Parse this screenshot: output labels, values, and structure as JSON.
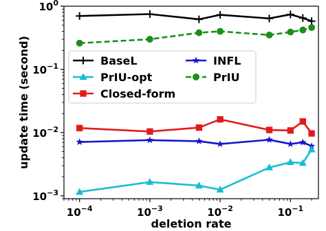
{
  "chart_data": {
    "type": "line",
    "title": "",
    "xlabel": "deletion rate",
    "ylabel": "update time (second)",
    "xscale": "log",
    "yscale": "log",
    "xlim": [
      6e-05,
      0.25
    ],
    "ylim": [
      0.0009,
      1.0
    ],
    "xticks": [
      {
        "value": 0.0001,
        "base": "10",
        "exp": "−4"
      },
      {
        "value": 0.001,
        "base": "10",
        "exp": "−3"
      },
      {
        "value": 0.01,
        "base": "10",
        "exp": "−2"
      },
      {
        "value": 0.1,
        "base": "10",
        "exp": "−1"
      }
    ],
    "yticks": [
      {
        "value": 0.001,
        "base": "10",
        "exp": "−3"
      },
      {
        "value": 0.01,
        "base": "10",
        "exp": "−2"
      },
      {
        "value": 0.1,
        "base": "10",
        "exp": "−1"
      },
      {
        "value": 1,
        "base": "10",
        "exp": "0"
      }
    ],
    "grid": false,
    "legend_position": "middle",
    "x": [
      0.0001,
      0.001,
      0.005,
      0.01,
      0.05,
      0.1,
      0.15,
      0.2
    ],
    "series": [
      {
        "name": "BaseL",
        "color": "#000000",
        "marker": "plus",
        "dash": "solid",
        "values": [
          0.7,
          0.75,
          0.62,
          0.73,
          0.64,
          0.74,
          0.65,
          0.58
        ]
      },
      {
        "name": "PrIU-opt",
        "color": "#17becf",
        "marker": "triangle",
        "dash": "solid",
        "values": [
          0.00115,
          0.00165,
          0.00145,
          0.00125,
          0.0028,
          0.0034,
          0.0033,
          0.0054
        ]
      },
      {
        "name": "Closed-form",
        "color": "#e31a1c",
        "marker": "square",
        "dash": "solid",
        "values": [
          0.0118,
          0.0104,
          0.012,
          0.0162,
          0.011,
          0.0108,
          0.015,
          0.0097
        ]
      },
      {
        "name": "INFL",
        "color": "#1515c8",
        "marker": "star",
        "dash": "solid",
        "values": [
          0.0071,
          0.0076,
          0.0073,
          0.0066,
          0.0077,
          0.0066,
          0.007,
          0.0061
        ]
      },
      {
        "name": "PrIU",
        "color": "#1a8f1a",
        "marker": "circle",
        "dash": "dashed",
        "values": [
          0.26,
          0.3,
          0.38,
          0.4,
          0.35,
          0.39,
          0.42,
          0.46
        ]
      }
    ],
    "legend_order": [
      "BaseL",
      "INFL",
      "PrIU-opt",
      "PrIU",
      "Closed-form"
    ]
  }
}
